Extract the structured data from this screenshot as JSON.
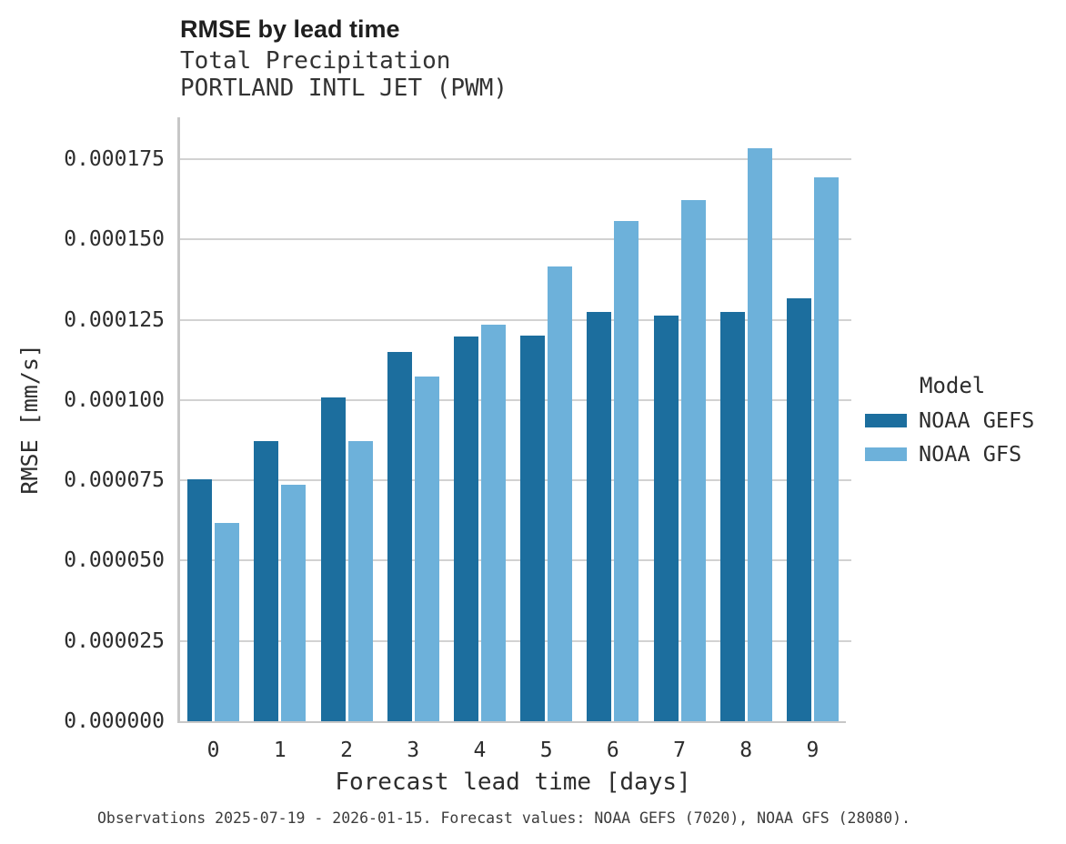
{
  "header": {
    "title": "RMSE by lead time",
    "subtitle_line1": "Total Precipitation",
    "subtitle_line2": "PORTLAND INTL JET (PWM)"
  },
  "legend": {
    "title": "Model",
    "items": [
      {
        "label": "NOAA GEFS",
        "color": "#1c6e9e"
      },
      {
        "label": "NOAA GFS",
        "color": "#6db1da"
      }
    ]
  },
  "caption": "Observations 2025-07-19 - 2026-01-15. Forecast values: NOAA GEFS (7020), NOAA GFS (28080).",
  "colors": {
    "series_dark": "#1c6e9e",
    "series_light": "#6db1da",
    "gridline": "#d2d2d2",
    "axis_line": "#c7c7c7",
    "text": "#2d2d2d"
  },
  "chart_data": {
    "type": "bar",
    "title": "RMSE by lead time",
    "subtitle": [
      "Total Precipitation",
      "PORTLAND INTL JET (PWM)"
    ],
    "xlabel": "Forecast lead time [days]",
    "ylabel": "RMSE [mm/s]",
    "categories": [
      "0",
      "1",
      "2",
      "3",
      "4",
      "5",
      "6",
      "7",
      "8",
      "9"
    ],
    "series": [
      {
        "name": "NOAA GEFS",
        "color": "#1c6e9e",
        "values": [
          7.52e-05,
          8.72e-05,
          0.0001008,
          0.0001149,
          0.0001197,
          0.00012,
          0.0001273,
          0.0001264,
          0.0001275,
          0.0001316
        ]
      },
      {
        "name": "NOAA GFS",
        "color": "#6db1da",
        "values": [
          6.18e-05,
          7.36e-05,
          8.72e-05,
          0.0001072,
          0.0001234,
          0.0001417,
          0.0001557,
          0.0001623,
          0.0001783,
          0.0001694
        ]
      }
    ],
    "ylim": [
      0,
      0.000188
    ],
    "yticks": [
      0,
      2.5e-05,
      5e-05,
      7.5e-05,
      0.0001,
      0.000125,
      0.00015,
      0.000175
    ],
    "ytick_labels": [
      "0.000000",
      "0.000025",
      "0.000050",
      "0.000075",
      "0.000100",
      "0.000125",
      "0.000150",
      "0.000175"
    ],
    "grid": "horizontal",
    "legend_position": "right",
    "legend_title": "Model"
  }
}
